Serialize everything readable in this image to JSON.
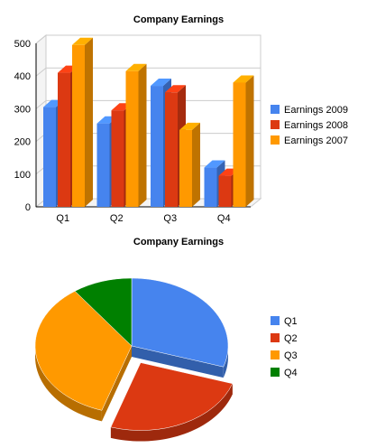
{
  "chart_data": [
    {
      "type": "bar",
      "title": "Company Earnings",
      "categories": [
        "Q1",
        "Q2",
        "Q3",
        "Q4"
      ],
      "series": [
        {
          "name": "Earnings 2009",
          "values": [
            305,
            255,
            370,
            120
          ],
          "color": "#4684ee"
        },
        {
          "name": "Earnings 2008",
          "values": [
            410,
            295,
            350,
            95
          ],
          "color": "#dc3912"
        },
        {
          "name": "Earnings 2007",
          "values": [
            495,
            415,
            235,
            380
          ],
          "color": "#ff9900"
        }
      ],
      "yticks": [
        0,
        100,
        200,
        300,
        400,
        500
      ],
      "ylim": [
        0,
        500
      ],
      "legend": "right",
      "style": "3d"
    },
    {
      "type": "pie",
      "title": "Company Earnings",
      "labels": [
        "Q1",
        "Q2",
        "Q3",
        "Q4"
      ],
      "values": [
        30,
        25,
        35,
        10
      ],
      "colors": [
        "#4684ee",
        "#dc3912",
        "#ff9900",
        "#008000"
      ],
      "exploded": [
        "Q2"
      ],
      "legend": "right",
      "style": "3d"
    }
  ]
}
